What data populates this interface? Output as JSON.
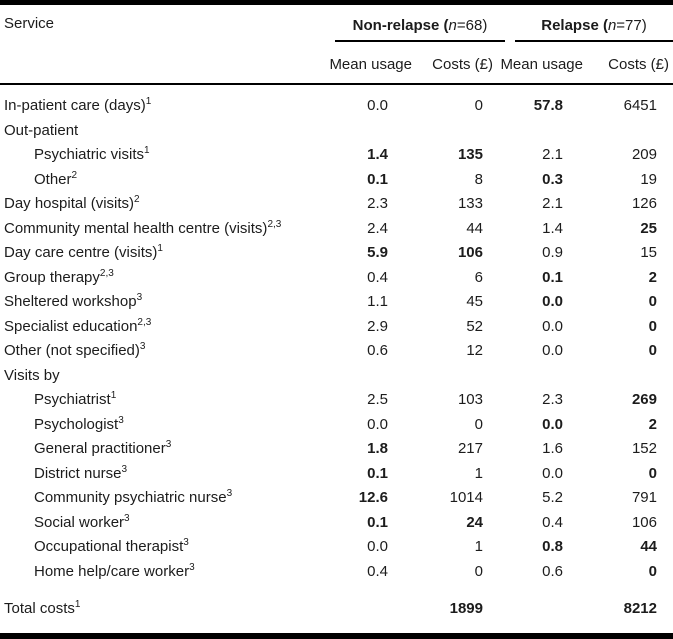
{
  "table": {
    "service_header": "Service",
    "group_headers": [
      {
        "prefix": "Non-relapse (",
        "n": "n",
        "suffix": "=68)"
      },
      {
        "prefix": "Relapse (",
        "n": "n",
        "suffix": "=77)"
      }
    ],
    "sub_headers": [
      "Mean usage",
      "Costs (£)",
      "Mean usage",
      "Costs (£)"
    ],
    "rows": [
      {
        "label": "In-patient care (days)",
        "sup": "1",
        "values": [
          "0.0",
          "0",
          "57.8",
          "6451"
        ]
      },
      {
        "label": "Out-patient"
      },
      {
        "label": "Psychiatric visits",
        "sup": "1",
        "values": [
          "1.4",
          "135",
          "2.1",
          "209"
        ]
      },
      {
        "label": "Other",
        "sup": "2",
        "values": [
          "0.1",
          "8",
          "0.3",
          "19"
        ]
      },
      {
        "label": "Day hospital (visits)",
        "sup": "2",
        "values": [
          "2.3",
          "133",
          "2.1",
          "126"
        ]
      },
      {
        "label": "Community mental health centre (visits)",
        "sup": "2,3",
        "values": [
          "2.4",
          "44",
          "1.4",
          "25"
        ]
      },
      {
        "label": "Day care centre (visits)",
        "sup": "1",
        "values": [
          "5.9",
          "106",
          "0.9",
          "15"
        ]
      },
      {
        "label": "Group therapy",
        "sup": "2,3",
        "values": [
          "0.4",
          "6",
          "0.1",
          "2"
        ]
      },
      {
        "label": "Sheltered workshop",
        "sup": "3",
        "values": [
          "1.1",
          "45",
          "0.0",
          "0"
        ]
      },
      {
        "label": "Specialist education",
        "sup": "2,3",
        "values": [
          "2.9",
          "52",
          "0.0",
          "0"
        ]
      },
      {
        "label": "Other (not specified)",
        "sup": "3",
        "values": [
          "0.6",
          "12",
          "0.0",
          "0"
        ]
      },
      {
        "label": "Visits by"
      },
      {
        "label": "Psychiatrist",
        "sup": "1",
        "values": [
          "2.5",
          "103",
          "2.3",
          "269"
        ]
      },
      {
        "label": "Psychologist",
        "sup": "3",
        "values": [
          "0.0",
          "0",
          "0.0",
          "2"
        ]
      },
      {
        "label": "General practitioner",
        "sup": "3",
        "values": [
          "1.8",
          "217",
          "1.6",
          "152"
        ]
      },
      {
        "label": "District nurse",
        "sup": "3",
        "values": [
          "0.1",
          "1",
          "0.0",
          "0"
        ]
      },
      {
        "label": "Community psychiatric nurse",
        "sup": "3",
        "values": [
          "12.6",
          "1014",
          "5.2",
          "791"
        ]
      },
      {
        "label": "Social worker",
        "sup": "3",
        "values": [
          "0.1",
          "24",
          "0.4",
          "106"
        ]
      },
      {
        "label": "Occupational therapist",
        "sup": "3",
        "values": [
          "0.0",
          "1",
          "0.8",
          "44"
        ]
      },
      {
        "label": "Home help/care worker",
        "sup": "3",
        "values": [
          "0.4",
          "0",
          "0.6",
          "0"
        ]
      }
    ],
    "total_row": {
      "label": "Total costs",
      "sup": "1",
      "values": [
        "",
        "1899",
        "",
        "8212"
      ]
    },
    "colors": {
      "background": "#ffffff",
      "text": "#1c1c1c",
      "rule": "#000000"
    }
  }
}
